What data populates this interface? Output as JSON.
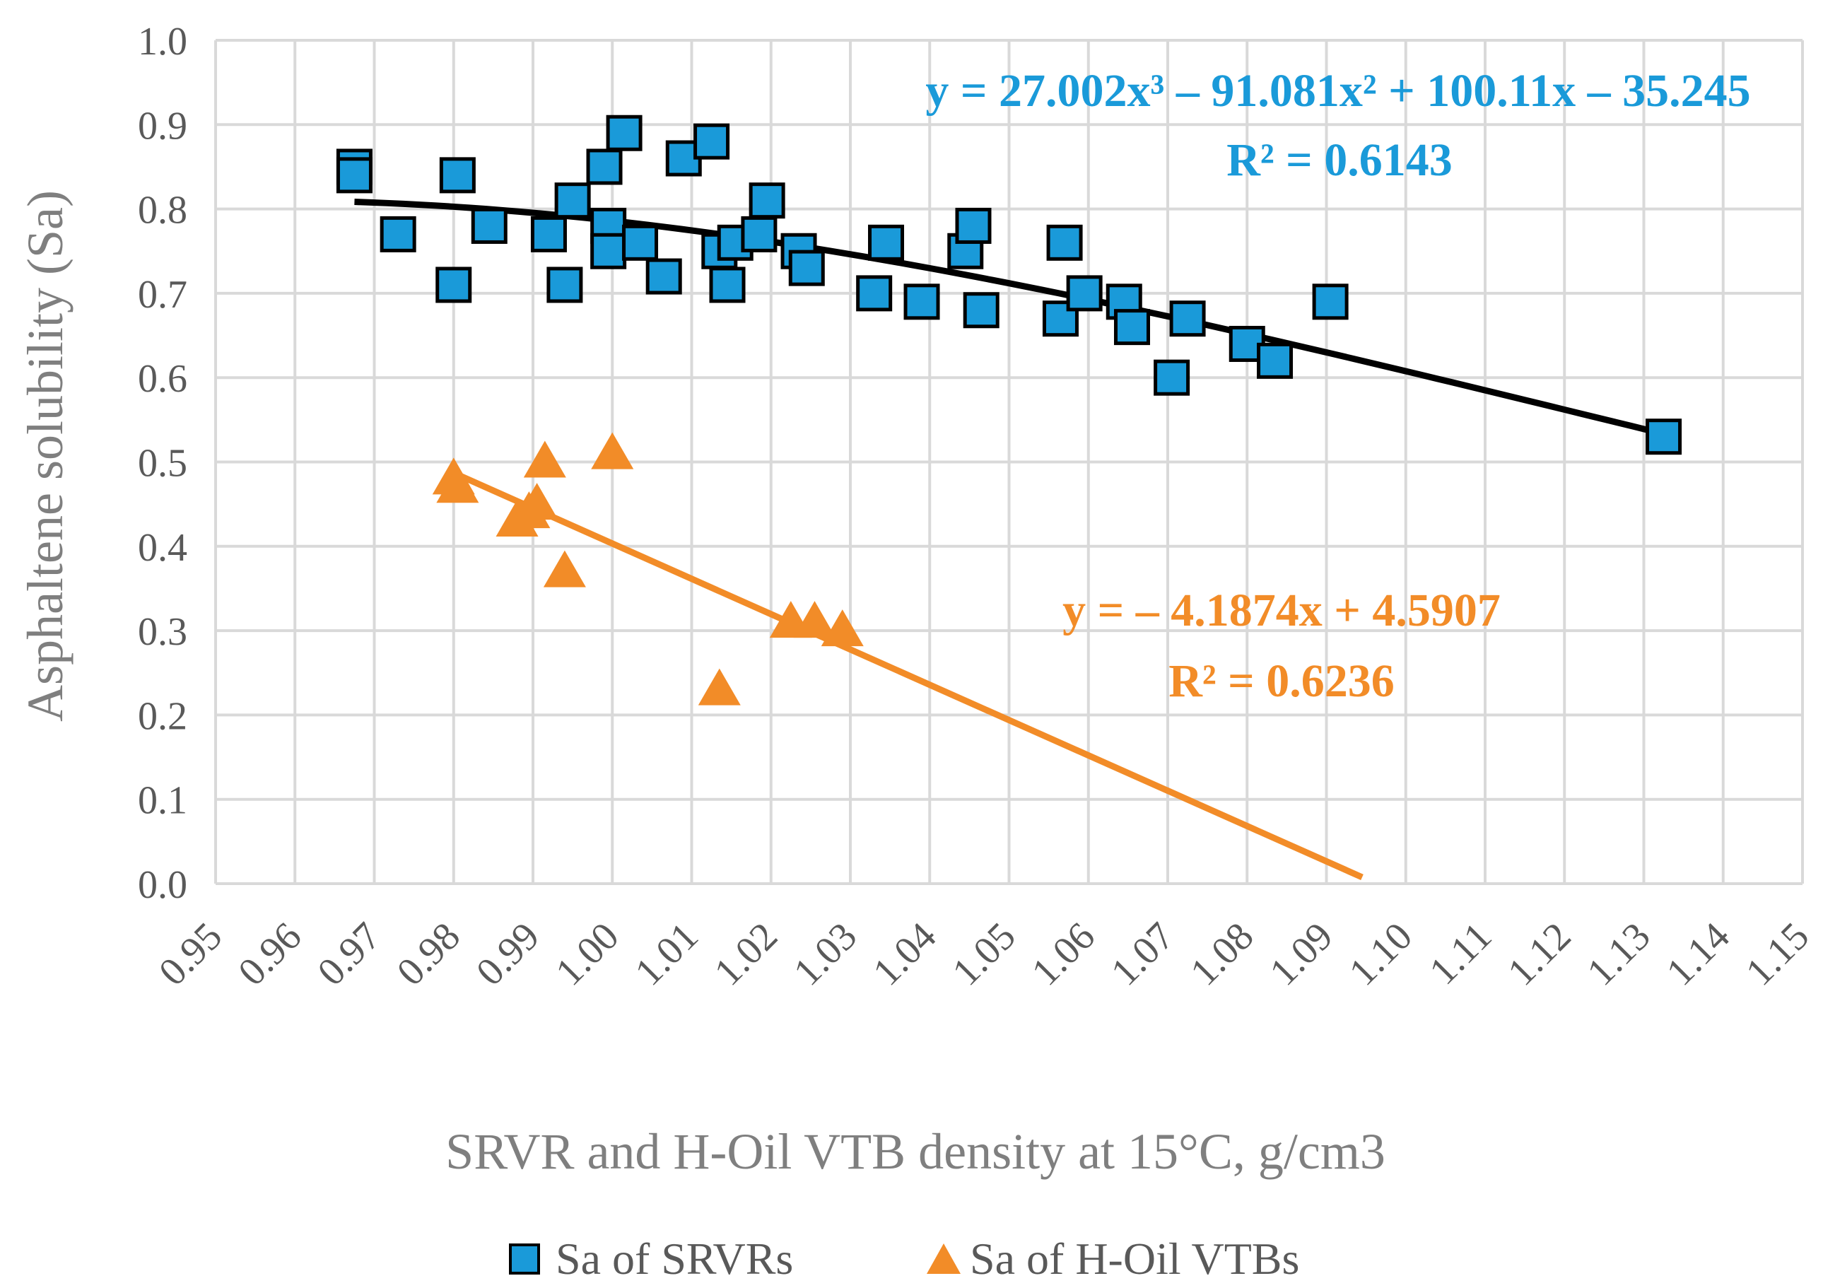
{
  "chart_data": {
    "type": "scatter",
    "title": "",
    "xlabel": "SRVR and H-Oil VTB density at 15°C, g/cm3",
    "ylabel": "Asphaltene solubility (Sa)",
    "xlim": [
      0.95,
      1.15
    ],
    "ylim": [
      0.0,
      1.0
    ],
    "x_ticks": [
      "0.95",
      "0.96",
      "0.97",
      "0.98",
      "0.99",
      "1.00",
      "1.01",
      "1.02",
      "1.03",
      "1.04",
      "1.05",
      "1.06",
      "1.07",
      "1.08",
      "1.09",
      "1.10",
      "1.11",
      "1.12",
      "1.13",
      "1.14",
      "1.15"
    ],
    "y_ticks": [
      "0.0",
      "0.1",
      "0.2",
      "0.3",
      "0.4",
      "0.5",
      "0.6",
      "0.7",
      "0.8",
      "0.9",
      "1.0"
    ],
    "grid": true,
    "legend_position": "bottom",
    "series": [
      {
        "name": "Sa of SRVRs",
        "marker": "square",
        "color": "#1a9ad9",
        "points": [
          [
            0.9675,
            0.85
          ],
          [
            0.9675,
            0.84
          ],
          [
            0.973,
            0.77
          ],
          [
            0.98,
            0.71
          ],
          [
            0.9805,
            0.84
          ],
          [
            0.9845,
            0.78
          ],
          [
            0.992,
            0.77
          ],
          [
            0.994,
            0.71
          ],
          [
            0.995,
            0.81
          ],
          [
            0.9995,
            0.78
          ],
          [
            0.9995,
            0.75
          ],
          [
            0.999,
            0.85
          ],
          [
            1.0015,
            0.89
          ],
          [
            1.0035,
            0.76
          ],
          [
            1.0065,
            0.72
          ],
          [
            1.009,
            0.86
          ],
          [
            1.0125,
            0.88
          ],
          [
            1.0135,
            0.75
          ],
          [
            1.0145,
            0.71
          ],
          [
            1.0155,
            0.76
          ],
          [
            1.0185,
            0.77
          ],
          [
            1.0195,
            0.81
          ],
          [
            1.0235,
            0.75
          ],
          [
            1.0245,
            0.73
          ],
          [
            1.033,
            0.7
          ],
          [
            1.0345,
            0.76
          ],
          [
            1.039,
            0.69
          ],
          [
            1.0445,
            0.75
          ],
          [
            1.0455,
            0.78
          ],
          [
            1.0465,
            0.68
          ],
          [
            1.0565,
            0.67
          ],
          [
            1.057,
            0.76
          ],
          [
            1.0595,
            0.7
          ],
          [
            1.0645,
            0.69
          ],
          [
            1.0655,
            0.66
          ],
          [
            1.0705,
            0.6
          ],
          [
            1.0725,
            0.67
          ],
          [
            1.08,
            0.64
          ],
          [
            1.0835,
            0.62
          ],
          [
            1.0905,
            0.69
          ],
          [
            1.1325,
            0.53
          ]
        ],
        "trendline": {
          "kind": "polynomial",
          "x_range": [
            0.9675,
            1.1325
          ],
          "label_equation": "y = 27.002x³ – 91.081x² + 100.11x – 35.245",
          "label_r2": "R² = 0.6143",
          "color": "#000000"
        }
      },
      {
        "name": "Sa of H-Oil VTBs",
        "marker": "triangle",
        "color": "#f28c28",
        "points": [
          [
            0.98,
            0.48
          ],
          [
            0.9805,
            0.47
          ],
          [
            0.988,
            0.43
          ],
          [
            0.9895,
            0.44
          ],
          [
            0.9905,
            0.45
          ],
          [
            0.9915,
            0.5
          ],
          [
            0.994,
            0.37
          ],
          [
            1.0,
            0.51
          ],
          [
            1.0135,
            0.23
          ],
          [
            1.0225,
            0.31
          ],
          [
            1.0255,
            0.31
          ],
          [
            1.029,
            0.3
          ]
        ],
        "trendline": {
          "kind": "linear",
          "slope": -4.1874,
          "intercept": 4.5907,
          "x_range": [
            0.98,
            1.0945
          ],
          "label_equation": "y = – 4.1874x + 4.5907",
          "label_r2": "R² = 0.6236",
          "color": "#f28c28"
        }
      }
    ]
  }
}
